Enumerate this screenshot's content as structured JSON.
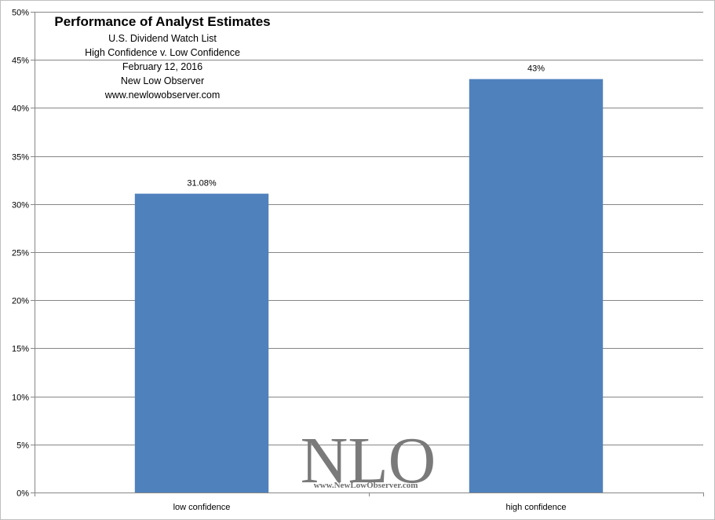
{
  "chart_data": {
    "type": "bar",
    "title": "Performance of Analyst Estimates",
    "subtitles": [
      "U.S. Dividend Watch List",
      "High Confidence v. Low Confidence",
      "February 12, 2016",
      "New Low Observer",
      "www.newlowobserver.com"
    ],
    "categories": [
      "low confidence",
      "high confidence"
    ],
    "values": [
      31.08,
      43
    ],
    "value_labels": [
      "31.08%",
      "43%"
    ],
    "ylim": [
      0,
      50
    ],
    "yticks": [
      0,
      5,
      10,
      15,
      20,
      25,
      30,
      35,
      40,
      45,
      50
    ],
    "ytick_labels": [
      "0%",
      "5%",
      "10%",
      "15%",
      "20%",
      "25%",
      "30%",
      "35%",
      "40%",
      "45%",
      "50%"
    ],
    "grid": true,
    "legend": "none",
    "bar_color": "#4f81bd",
    "grid_color": "#868686"
  },
  "watermark": {
    "logo_text": "NLO",
    "url_text": "www.NewLowObserver.com"
  }
}
